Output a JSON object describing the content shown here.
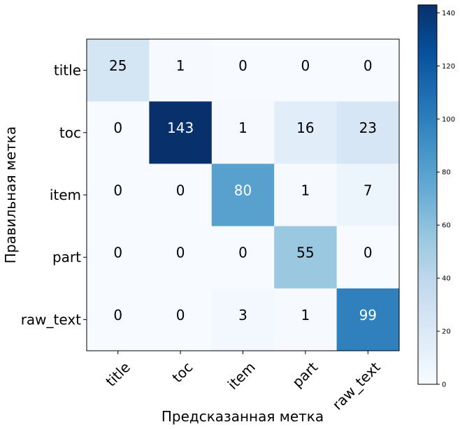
{
  "chart_data": {
    "type": "heatmap",
    "title": "",
    "xlabel": "Предсказанная метка",
    "ylabel": "Правильная метка",
    "x_categories": [
      "title",
      "toc",
      "item",
      "part",
      "raw_text"
    ],
    "y_categories": [
      "title",
      "toc",
      "item",
      "part",
      "raw_text"
    ],
    "values": [
      [
        25,
        1,
        0,
        0,
        0
      ],
      [
        0,
        143,
        1,
        16,
        23
      ],
      [
        0,
        0,
        80,
        1,
        7
      ],
      [
        0,
        0,
        0,
        55,
        0
      ],
      [
        0,
        0,
        3,
        1,
        99
      ]
    ],
    "colormap": "Blues",
    "vmin": 0,
    "vmax": 143,
    "colorbar_ticks": [
      0,
      20,
      40,
      60,
      80,
      100,
      120,
      140
    ]
  }
}
